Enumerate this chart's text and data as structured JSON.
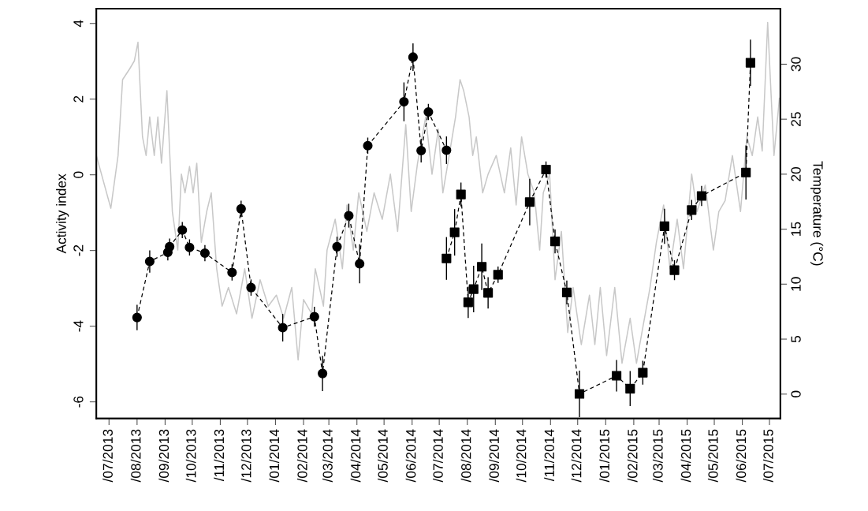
{
  "chart_data": {
    "type": "line",
    "ylabel": "Activity index",
    "y2label": "Temperature (°C)",
    "xlim": [
      "2013-06-17",
      "2015-07-13"
    ],
    "ylim": [
      -6.44,
      4.39
    ],
    "y2lim": [
      -2.22,
      35.05
    ],
    "yticks": [
      -6,
      -4,
      -2,
      0,
      2,
      4
    ],
    "y2ticks": [
      0,
      5,
      10,
      15,
      20,
      25,
      30
    ],
    "xticks": [
      {
        "value": "2013-07-01",
        "label": "/07/2013"
      },
      {
        "value": "2013-08-01",
        "label": "/08/2013"
      },
      {
        "value": "2013-09-01",
        "label": "/09/2013"
      },
      {
        "value": "2013-10-01",
        "label": "/10/2013"
      },
      {
        "value": "2013-11-01",
        "label": "/11/2013"
      },
      {
        "value": "2013-12-01",
        "label": "/12/2013"
      },
      {
        "value": "2014-01-01",
        "label": "/01/2014"
      },
      {
        "value": "2014-02-01",
        "label": "/02/2014"
      },
      {
        "value": "2014-03-01",
        "label": "/03/2014"
      },
      {
        "value": "2014-04-01",
        "label": "/04/2014"
      },
      {
        "value": "2014-05-01",
        "label": "/05/2014"
      },
      {
        "value": "2014-06-01",
        "label": "/06/2014"
      },
      {
        "value": "2014-07-01",
        "label": "/07/2014"
      },
      {
        "value": "2014-08-01",
        "label": "/08/2014"
      },
      {
        "value": "2014-09-01",
        "label": "/09/2014"
      },
      {
        "value": "2014-10-01",
        "label": "/10/2014"
      },
      {
        "value": "2014-11-01",
        "label": "/11/2014"
      },
      {
        "value": "2014-12-01",
        "label": "/12/2014"
      },
      {
        "value": "2015-01-01",
        "label": "/01/2015"
      },
      {
        "value": "2015-02-01",
        "label": "/02/2015"
      },
      {
        "value": "2015-03-01",
        "label": "/03/2015"
      },
      {
        "value": "2015-04-01",
        "label": "/04/2015"
      },
      {
        "value": "2015-05-01",
        "label": "/05/2015"
      },
      {
        "value": "2015-06-01",
        "label": "/06/2015"
      },
      {
        "value": "2015-07-01",
        "label": "/07/2015"
      }
    ],
    "grid": false,
    "legend": false,
    "series": [
      {
        "axis": "y2",
        "color": "#c8c8c8",
        "line_style": "solid",
        "marker": "none",
        "x": [
          "2013-06-17",
          "2013-07-03",
          "2013-07-11",
          "2013-07-16",
          "2013-07-24",
          "2013-07-29",
          "2013-08-02",
          "2013-08-07",
          "2013-08-11",
          "2013-08-15",
          "2013-08-20",
          "2013-08-24",
          "2013-08-28",
          "2013-09-03",
          "2013-09-09",
          "2013-09-15",
          "2013-09-19",
          "2013-09-23",
          "2013-09-28",
          "2013-10-02",
          "2013-10-06",
          "2013-10-11",
          "2013-10-17",
          "2013-10-22",
          "2013-10-28",
          "2013-11-03",
          "2013-11-10",
          "2013-11-19",
          "2013-11-28",
          "2013-12-06",
          "2013-12-15",
          "2013-12-24",
          "2014-01-02",
          "2014-01-10",
          "2014-01-19",
          "2014-01-26",
          "2014-02-01",
          "2014-02-10",
          "2014-02-14",
          "2014-02-23",
          "2014-02-27",
          "2014-03-08",
          "2014-03-16",
          "2014-03-21",
          "2014-03-28",
          "2014-04-03",
          "2014-04-12",
          "2014-04-20",
          "2014-04-29",
          "2014-05-08",
          "2014-05-16",
          "2014-05-25",
          "2014-05-31",
          "2014-06-07",
          "2014-06-16",
          "2014-06-23",
          "2014-06-30",
          "2014-07-05",
          "2014-07-12",
          "2014-07-19",
          "2014-07-24",
          "2014-07-28",
          "2014-08-03",
          "2014-08-07",
          "2014-08-11",
          "2014-08-18",
          "2014-08-24",
          "2014-09-02",
          "2014-09-11",
          "2014-09-18",
          "2014-09-24",
          "2014-09-30",
          "2014-10-07",
          "2014-10-14",
          "2014-10-20",
          "2014-10-24",
          "2014-10-31",
          "2014-11-06",
          "2014-11-13",
          "2014-11-20",
          "2014-11-26",
          "2014-12-05",
          "2014-12-14",
          "2014-12-20",
          "2014-12-26",
          "2015-01-02",
          "2015-01-11",
          "2015-01-19",
          "2015-01-28",
          "2015-02-04",
          "2015-02-10",
          "2015-02-19",
          "2015-02-26",
          "2015-03-06",
          "2015-03-13",
          "2015-03-21",
          "2015-03-28",
          "2015-04-06",
          "2015-04-12",
          "2015-04-21",
          "2015-04-30",
          "2015-05-06",
          "2015-05-13",
          "2015-05-21",
          "2015-05-30",
          "2015-06-06",
          "2015-06-12",
          "2015-06-18",
          "2015-06-23",
          "2015-06-29",
          "2015-07-06",
          "2015-07-12"
        ],
        "values": [
          21.7,
          16.9,
          21.7,
          28.6,
          29.6,
          30.3,
          32.0,
          23.4,
          21.7,
          25.2,
          21.7,
          25.2,
          21.0,
          27.6,
          16.6,
          13.1,
          20,
          18.3,
          20.7,
          18.3,
          21.0,
          13.8,
          16.6,
          18.3,
          11.4,
          8.0,
          9.7,
          7.3,
          11.4,
          6.9,
          10.4,
          8.0,
          9.0,
          6.9,
          9.7,
          3.1,
          8.6,
          7.3,
          11.4,
          8.0,
          13.1,
          15.9,
          11.4,
          17.2,
          13.1,
          18.3,
          14.8,
          18.3,
          15.9,
          20,
          14.8,
          24.5,
          16.6,
          21.0,
          25.2,
          20,
          24.1,
          18.3,
          21.7,
          25.2,
          28.6,
          27.6,
          25.2,
          21.7,
          23.4,
          18.3,
          20,
          21.7,
          18.3,
          22.4,
          17.2,
          23.4,
          20,
          18.3,
          13.1,
          18.3,
          20,
          10.4,
          14.8,
          5.6,
          9.7,
          4.5,
          9.0,
          4.5,
          9.7,
          3.5,
          9.7,
          2.8,
          6.9,
          2.8,
          5.6,
          9.7,
          13.8,
          17.2,
          11.4,
          15.9,
          11.4,
          20,
          16.6,
          19.0,
          13.1,
          16.6,
          17.6,
          21.7,
          16.6,
          23.4,
          21.7,
          25.2,
          22.1,
          33.8,
          21.7,
          26.9
        ]
      },
      {
        "color": "#000000",
        "marker": "circle",
        "line_style": "dashed",
        "x": [
          "2013-08-01",
          "2013-08-15",
          "2013-09-04",
          "2013-09-06",
          "2013-09-20",
          "2013-09-28",
          "2013-10-15",
          "2013-11-14",
          "2013-11-24",
          "2013-12-05",
          "2014-01-09",
          "2014-02-13",
          "2014-02-22",
          "2014-03-10",
          "2014-03-23",
          "2014-04-04",
          "2014-04-13",
          "2014-05-23",
          "2014-06-02",
          "2014-06-11",
          "2014-06-19",
          "2014-07-09"
        ],
        "values": [
          -3.77,
          -2.29,
          -2.05,
          -1.9,
          -1.46,
          -1.92,
          -2.07,
          -2.58,
          -0.9,
          -2.98,
          -4.04,
          -3.75,
          -5.25,
          -1.9,
          -1.08,
          -2.35,
          0.77,
          1.93,
          3.11,
          0.64,
          1.66,
          0.65
        ],
        "errors": [
          0.32,
          0.28,
          0.2,
          0.2,
          0.2,
          0.2,
          0.2,
          0.2,
          0.2,
          0.2,
          0.35,
          0.25,
          0.45,
          0.25,
          0.3,
          0.5,
          0.2,
          0.5,
          0.35,
          0.3,
          0.2,
          0.35
        ]
      },
      {
        "color": "#000000",
        "marker": "square",
        "line_style": "dashed",
        "x": [
          "2014-07-09",
          "2014-07-18",
          "2014-07-25",
          "2014-08-02",
          "2014-08-08",
          "2014-08-17",
          "2014-08-24",
          "2014-09-04",
          "2014-10-09",
          "2014-10-27",
          "2014-11-06",
          "2014-11-19",
          "2014-12-03",
          "2015-01-13",
          "2015-01-28",
          "2015-02-11",
          "2015-03-07",
          "2015-03-18",
          "2015-04-06",
          "2015-04-17",
          "2015-06-05",
          "2015-06-10"
        ],
        "values": [
          -2.21,
          -1.52,
          -0.52,
          -3.37,
          -3.02,
          -2.43,
          -3.12,
          -2.64,
          -0.72,
          0.14,
          -1.76,
          -3.11,
          -5.79,
          -5.31,
          -5.65,
          -5.23,
          -1.36,
          -2.52,
          -0.93,
          -0.56,
          0.06,
          2.96
        ],
        "errors": [
          0.55,
          0.6,
          0.3,
          0.4,
          0.6,
          0.6,
          0.4,
          0.2,
          0.6,
          0.2,
          0.3,
          0.3,
          0.6,
          0.4,
          0.45,
          0.3,
          0.45,
          0.25,
          0.25,
          0.25,
          0.7,
          0.6
        ]
      }
    ]
  }
}
